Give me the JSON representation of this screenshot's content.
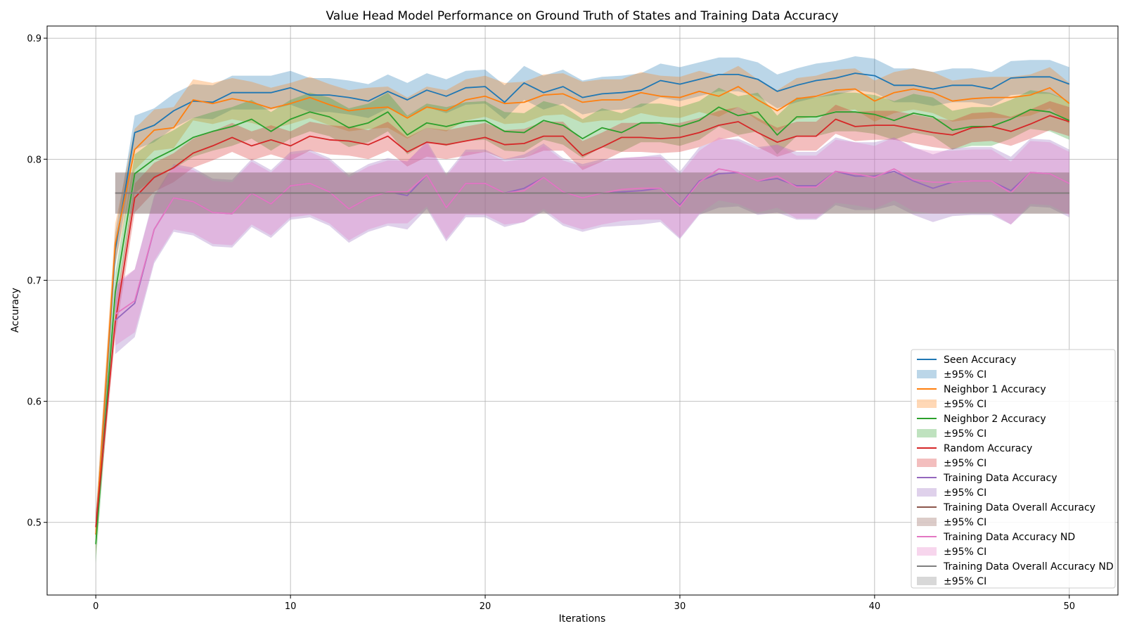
{
  "chart_data": {
    "type": "line",
    "title": "Value Head Model Performance on Ground Truth of States and Training Data Accuracy",
    "xlabel": "Iterations",
    "ylabel": "Accuracy",
    "xlim": [
      -2.5,
      52.5
    ],
    "ylim": [
      0.44,
      0.91
    ],
    "xticks": [
      0,
      10,
      20,
      30,
      40,
      50
    ],
    "yticks": [
      0.5,
      0.6,
      0.7,
      0.8,
      0.9
    ],
    "xtick_labels": [
      "0",
      "10",
      "20",
      "30",
      "40",
      "50"
    ],
    "ytick_labels": [
      "0.5",
      "0.6",
      "0.7",
      "0.8",
      "0.9"
    ],
    "grid": true,
    "legend_position": "lower-right",
    "series": [
      {
        "name": "Seen Accuracy",
        "ci_name": "±95% CI",
        "color": "#1f77b4",
        "x_start": 0,
        "values": [
          0.49,
          0.725,
          0.822,
          0.828,
          0.84,
          0.848,
          0.847,
          0.855,
          0.855,
          0.855,
          0.859,
          0.853,
          0.853,
          0.851,
          0.848,
          0.856,
          0.849,
          0.857,
          0.852,
          0.859,
          0.86,
          0.847,
          0.863,
          0.855,
          0.86,
          0.851,
          0.854,
          0.855,
          0.857,
          0.865,
          0.862,
          0.866,
          0.87,
          0.87,
          0.866,
          0.856,
          0.861,
          0.865,
          0.867,
          0.871,
          0.869,
          0.861,
          0.861,
          0.858,
          0.861,
          0.861,
          0.858,
          0.867,
          0.868,
          0.868,
          0.862
        ],
        "ci": 0.014
      },
      {
        "name": "Neighbor 1 Accuracy",
        "ci_name": "±95% CI",
        "color": "#ff7f0e",
        "x_start": 0,
        "values": [
          0.49,
          0.73,
          0.808,
          0.824,
          0.826,
          0.849,
          0.846,
          0.85,
          0.847,
          0.842,
          0.846,
          0.851,
          0.845,
          0.84,
          0.842,
          0.843,
          0.834,
          0.843,
          0.84,
          0.849,
          0.852,
          0.846,
          0.847,
          0.853,
          0.854,
          0.847,
          0.849,
          0.849,
          0.855,
          0.852,
          0.851,
          0.856,
          0.852,
          0.86,
          0.849,
          0.84,
          0.85,
          0.852,
          0.857,
          0.858,
          0.848,
          0.855,
          0.858,
          0.855,
          0.848,
          0.85,
          0.851,
          0.851,
          0.853,
          0.859,
          0.846
        ],
        "ci": 0.017
      },
      {
        "name": "Neighbor 2 Accuracy",
        "ci_name": "±95% CI",
        "color": "#2ca02c",
        "x_start": 0,
        "values": [
          0.482,
          0.69,
          0.788,
          0.8,
          0.808,
          0.818,
          0.823,
          0.827,
          0.833,
          0.823,
          0.833,
          0.839,
          0.835,
          0.826,
          0.83,
          0.839,
          0.82,
          0.83,
          0.827,
          0.831,
          0.832,
          0.823,
          0.822,
          0.832,
          0.828,
          0.817,
          0.826,
          0.822,
          0.83,
          0.83,
          0.827,
          0.832,
          0.843,
          0.836,
          0.839,
          0.82,
          0.835,
          0.835,
          0.839,
          0.839,
          0.837,
          0.832,
          0.838,
          0.835,
          0.824,
          0.827,
          0.827,
          0.833,
          0.841,
          0.839,
          0.832
        ],
        "ci": 0.016
      },
      {
        "name": "Random Accuracy",
        "ci_name": "±95% CI",
        "color": "#d62728",
        "x_start": 0,
        "values": [
          0.496,
          0.665,
          0.768,
          0.785,
          0.793,
          0.805,
          0.811,
          0.818,
          0.811,
          0.816,
          0.811,
          0.819,
          0.816,
          0.815,
          0.812,
          0.819,
          0.806,
          0.814,
          0.812,
          0.815,
          0.818,
          0.812,
          0.813,
          0.819,
          0.819,
          0.803,
          0.81,
          0.818,
          0.818,
          0.817,
          0.818,
          0.822,
          0.828,
          0.831,
          0.822,
          0.814,
          0.819,
          0.819,
          0.833,
          0.827,
          0.828,
          0.828,
          0.825,
          0.822,
          0.82,
          0.826,
          0.827,
          0.823,
          0.829,
          0.836,
          0.831
        ],
        "ci": 0.012
      },
      {
        "name": "Training Data Accuracy",
        "ci_name": "±95% CI",
        "color": "#9467bd",
        "x_start": 1,
        "values": [
          0.667,
          0.681,
          0.742,
          0.768,
          0.765,
          0.756,
          0.755,
          0.772,
          0.763,
          0.778,
          0.78,
          0.773,
          0.759,
          0.768,
          0.773,
          0.77,
          0.787,
          0.76,
          0.78,
          0.78,
          0.772,
          0.776,
          0.785,
          0.773,
          0.768,
          0.772,
          0.773,
          0.774,
          0.776,
          0.762,
          0.782,
          0.788,
          0.789,
          0.782,
          0.784,
          0.778,
          0.778,
          0.79,
          0.786,
          0.786,
          0.79,
          0.782,
          0.776,
          0.781,
          0.782,
          0.782,
          0.774,
          0.789,
          0.788,
          0.78
        ],
        "ci": 0.028
      },
      {
        "name": "Training Data Overall Accuracy",
        "ci_name": "±95% CI",
        "color": "#8c564b",
        "x_start": 1,
        "values": [
          0.772,
          0.772,
          0.772,
          0.772,
          0.772,
          0.772,
          0.772,
          0.772,
          0.772,
          0.772,
          0.772,
          0.772,
          0.772,
          0.772,
          0.772,
          0.772,
          0.772,
          0.772,
          0.772,
          0.772,
          0.772,
          0.772,
          0.772,
          0.772,
          0.772,
          0.772,
          0.772,
          0.772,
          0.772,
          0.772,
          0.772,
          0.772,
          0.772,
          0.772,
          0.772,
          0.772,
          0.772,
          0.772,
          0.772,
          0.772,
          0.772,
          0.772,
          0.772,
          0.772,
          0.772,
          0.772,
          0.772,
          0.772,
          0.772,
          0.772
        ],
        "ci": 0.017
      },
      {
        "name": "Training Data Accuracy ND",
        "ci_name": "±95% CI",
        "color": "#e377c2",
        "x_start": 1,
        "values": [
          0.672,
          0.683,
          0.742,
          0.768,
          0.765,
          0.756,
          0.755,
          0.772,
          0.763,
          0.778,
          0.78,
          0.773,
          0.759,
          0.768,
          0.773,
          0.773,
          0.787,
          0.76,
          0.78,
          0.78,
          0.772,
          0.774,
          0.785,
          0.773,
          0.768,
          0.772,
          0.775,
          0.776,
          0.776,
          0.761,
          0.781,
          0.792,
          0.789,
          0.782,
          0.786,
          0.777,
          0.777,
          0.79,
          0.788,
          0.785,
          0.792,
          0.783,
          0.781,
          0.781,
          0.782,
          0.782,
          0.772,
          0.789,
          0.788,
          0.78
        ],
        "ci": 0.026
      },
      {
        "name": "Training Data Overall Accuracy ND",
        "ci_name": "±95% CI",
        "color": "#7f7f7f",
        "x_start": 1,
        "values": [
          0.772,
          0.772,
          0.772,
          0.772,
          0.772,
          0.772,
          0.772,
          0.772,
          0.772,
          0.772,
          0.772,
          0.772,
          0.772,
          0.772,
          0.772,
          0.772,
          0.772,
          0.772,
          0.772,
          0.772,
          0.772,
          0.772,
          0.772,
          0.772,
          0.772,
          0.772,
          0.772,
          0.772,
          0.772,
          0.772,
          0.772,
          0.772,
          0.772,
          0.772,
          0.772,
          0.772,
          0.772,
          0.772,
          0.772,
          0.772,
          0.772,
          0.772,
          0.772,
          0.772,
          0.772,
          0.772,
          0.772,
          0.772,
          0.772,
          0.772
        ],
        "ci": 0.017
      }
    ]
  }
}
